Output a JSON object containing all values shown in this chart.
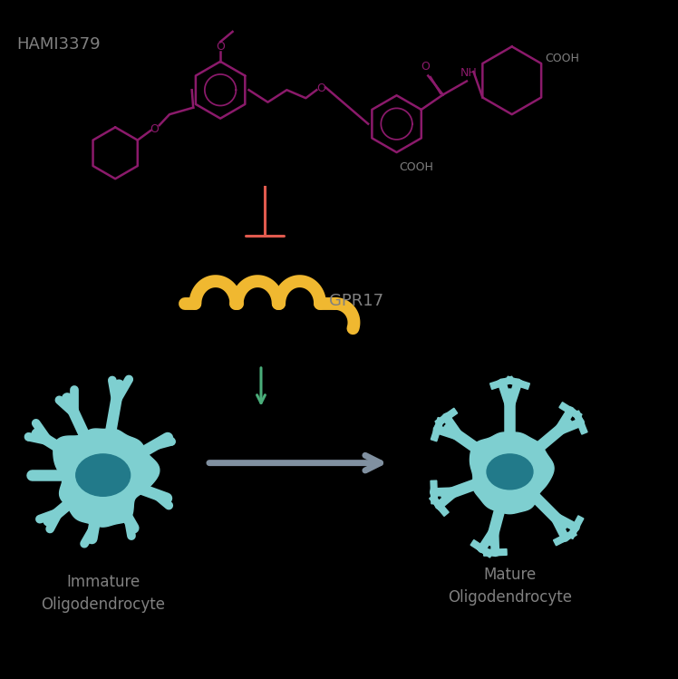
{
  "background_color": "#000000",
  "molecule_color": "#8B1A6B",
  "inhibit_line_color": "#E05A4E",
  "gpr17_color": "#F0B830",
  "gpr17_label_color": "#808080",
  "arrow_down_color": "#4AAD7A",
  "arrow_right_color": "#8090A0",
  "cell_body_color": "#7ECFD0",
  "cell_nucleus_color": "#227A8A",
  "hami_label_color": "#808080",
  "label_color": "#808080",
  "title": "HAMI3379",
  "gpr17_label": "GPR17",
  "immature_label": "Immature\nOligodendrocyte",
  "mature_label": "Mature\nOligodendrocyte",
  "cooh_color": "#808080"
}
